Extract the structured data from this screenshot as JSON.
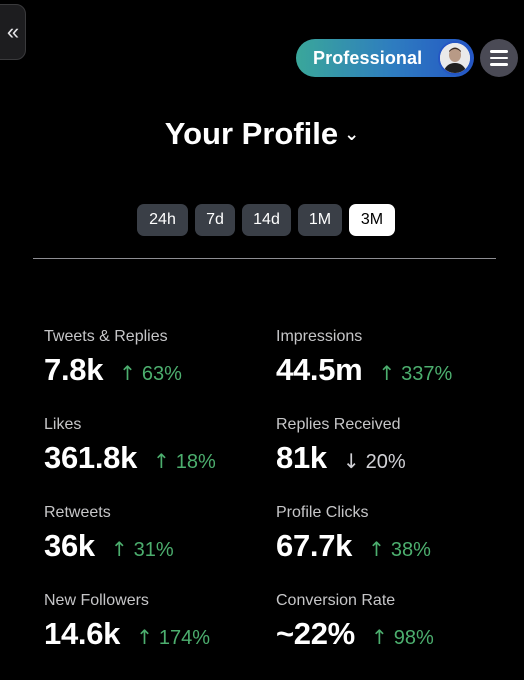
{
  "header": {
    "collapse_icon": "«",
    "plan_label": "Professional",
    "title": "Your Profile",
    "title_chevron": "⌄"
  },
  "ranges": [
    "24h",
    "7d",
    "14d",
    "1M",
    "3M"
  ],
  "active_range": "3M",
  "stats": [
    {
      "label": "Tweets & Replies",
      "value": "7.8k",
      "change": "63%",
      "direction": "up"
    },
    {
      "label": "Impressions",
      "value": "44.5m",
      "change": "337%",
      "direction": "up"
    },
    {
      "label": "Likes",
      "value": "361.8k",
      "change": "18%",
      "direction": "up"
    },
    {
      "label": "Replies Received",
      "value": "81k",
      "change": "20%",
      "direction": "down"
    },
    {
      "label": "Retweets",
      "value": "36k",
      "change": "31%",
      "direction": "up"
    },
    {
      "label": "Profile Clicks",
      "value": "67.7k",
      "change": "38%",
      "direction": "up"
    },
    {
      "label": "New Followers",
      "value": "14.6k",
      "change": "174%",
      "direction": "up"
    },
    {
      "label": "Conversion Rate",
      "value": "~22%",
      "change": "98%",
      "direction": "up"
    }
  ],
  "colors": {
    "up": "#4cae6e",
    "down": "#d1d1d6",
    "accent": "#2456c4"
  }
}
